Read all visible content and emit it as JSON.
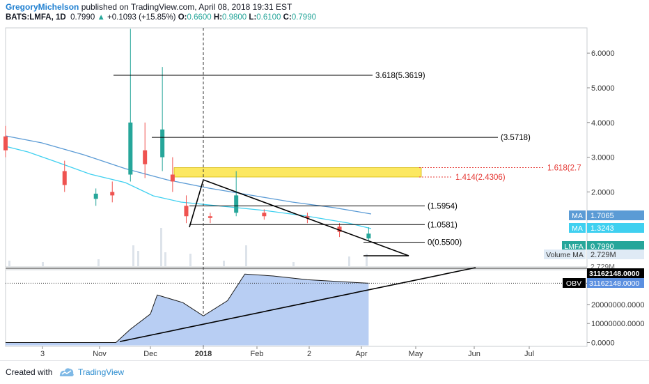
{
  "header": {
    "author": "GregoryMichelson",
    "published": "published on TradingView.com, April 08, 2018 19:31 EST",
    "symbol": "BATS:LMFA, 1D",
    "last": "0.7990",
    "change": "+0.1093 (+15.85%)",
    "o_label": "O:",
    "o_value": "0.6600",
    "h_label": "H:",
    "h_value": "0.9800",
    "l_label": "L:",
    "l_value": "0.6100",
    "c_label": "C:",
    "c_value": "0.7990"
  },
  "footer": {
    "created_with": "Created with",
    "brand": "TradingView"
  },
  "colors": {
    "up": "#26a69a",
    "down": "#ef5350",
    "ma_long": "#5b9bd5",
    "ma_short": "#3fd0f0",
    "obv_fill": "#b8cef3",
    "zone": "#fbe23a",
    "fib_red": "#e53935"
  },
  "chart_data": [
    {
      "type": "candlestick",
      "symbol": "BATS:LMFA",
      "interval": "1D",
      "price_axis_ticks": [
        "6.0000",
        "5.0000",
        "4.0000",
        "3.0000",
        "2.0000",
        "1.0000"
      ],
      "ylim": [
        0,
        6.9
      ],
      "time_axis_ticks": [
        "3",
        "Nov",
        "Dec",
        "2018",
        "Feb",
        "2",
        "Apr",
        "May",
        "Jun",
        "Jul"
      ],
      "candles_approx": [
        {
          "t": "Oct 1",
          "o": 3.6,
          "h": 3.9,
          "c": 3.2,
          "l": 3.0
        },
        {
          "t": "Oct 15",
          "o": 2.6,
          "h": 2.9,
          "c": 2.2,
          "l": 2.0
        },
        {
          "t": "Nov 1",
          "o": 1.8,
          "h": 2.1,
          "c": 1.95,
          "l": 1.6
        },
        {
          "t": "Nov 10",
          "o": 2.0,
          "h": 2.3,
          "c": 1.9,
          "l": 1.7
        },
        {
          "t": "Nov 20",
          "o": 2.5,
          "h": 6.7,
          "c": 4.0,
          "l": 2.3
        },
        {
          "t": "Nov 28",
          "o": 3.2,
          "h": 4.0,
          "c": 2.8,
          "l": 2.4
        },
        {
          "t": "Dec 8",
          "o": 3.0,
          "h": 5.6,
          "c": 3.8,
          "l": 2.6
        },
        {
          "t": "Dec 14",
          "o": 2.5,
          "h": 3.0,
          "c": 2.3,
          "l": 2.0
        },
        {
          "t": "Dec 22",
          "o": 1.6,
          "h": 1.9,
          "c": 1.3,
          "l": 1.1
        },
        {
          "t": "Jan 5",
          "o": 1.3,
          "h": 1.4,
          "c": 1.25,
          "l": 1.1
        },
        {
          "t": "Jan 20",
          "o": 1.4,
          "h": 2.6,
          "c": 1.9,
          "l": 1.3
        },
        {
          "t": "Feb 5",
          "o": 1.4,
          "h": 1.5,
          "c": 1.3,
          "l": 1.2
        },
        {
          "t": "Mar 1",
          "o": 1.3,
          "h": 1.4,
          "c": 1.25,
          "l": 1.1
        },
        {
          "t": "Mar 20",
          "o": 1.0,
          "h": 1.1,
          "c": 0.85,
          "l": 0.7
        },
        {
          "t": "Apr 6",
          "o": 0.66,
          "h": 0.98,
          "c": 0.799,
          "l": 0.61
        }
      ],
      "fibonacci_levels": [
        {
          "label": "3.618(5.3619)",
          "value": 5.3619,
          "color": "black"
        },
        {
          "label": "(3.5718)",
          "value": 3.5718,
          "color": "black"
        },
        {
          "label": "1.618(2.7",
          "value": 2.7,
          "color": "red"
        },
        {
          "label": "1.414(2.4306)",
          "value": 2.4306,
          "color": "red"
        },
        {
          "label": "(1.5954)",
          "value": 1.5954,
          "color": "black"
        },
        {
          "label": "(1.0581)",
          "value": 1.0581,
          "color": "black"
        },
        {
          "label": "0(0.5500)",
          "value": 0.55,
          "color": "black"
        }
      ],
      "supply_zone": {
        "from": 2.43,
        "to": 2.7
      },
      "triangle": {
        "apex": "Jan 1 2018",
        "top": 2.7,
        "bottom": 1.1,
        "end": "Apr 30"
      },
      "marker_line": "2018",
      "price_labels": [
        {
          "name": "MA",
          "value": "1.7065",
          "color": "#5b9bd5"
        },
        {
          "name": "MA",
          "value": "1.3243",
          "color": "#3fd0f0"
        },
        {
          "name": "LMFA",
          "value": "0.7990",
          "color": "#26a69a"
        },
        {
          "name": "Volume MA",
          "value": "2.729M",
          "color": "#dfeaf5"
        }
      ],
      "volume_label_behind": "2.729M"
    },
    {
      "type": "area",
      "name": "OBV",
      "value_label": "31162148.0000",
      "axis_ticks": [
        "20000000.0000",
        "10000000.0000",
        "0.0000"
      ],
      "ylim": [
        -1500000,
        36000000
      ],
      "points_approx": [
        {
          "t": "Oct 1",
          "v": 0
        },
        {
          "t": "Nov 12",
          "v": 0
        },
        {
          "t": "Nov 20",
          "v": 7000000
        },
        {
          "t": "Dec 1",
          "v": 15000000
        },
        {
          "t": "Dec 5",
          "v": 25000000
        },
        {
          "t": "Dec 20",
          "v": 21000000
        },
        {
          "t": "Jan 1",
          "v": 14000000
        },
        {
          "t": "Jan 15",
          "v": 22000000
        },
        {
          "t": "Jan 25",
          "v": 36000000
        },
        {
          "t": "Feb 10",
          "v": 35000000
        },
        {
          "t": "Mar 1",
          "v": 33000000
        },
        {
          "t": "Apr 6",
          "v": 31162148
        }
      ]
    }
  ]
}
